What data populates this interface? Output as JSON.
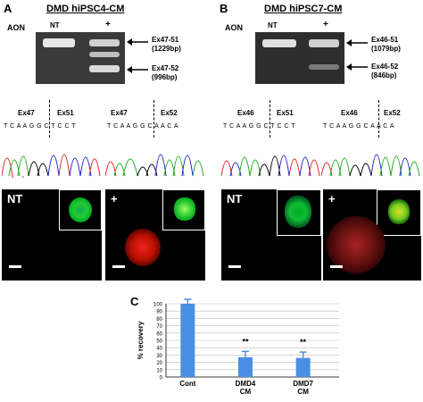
{
  "panelA": {
    "label": "A",
    "title": "DMD hiPSC4-CM",
    "aon": "AON",
    "lane_nt": "NT",
    "lane_plus": "+",
    "band1": {
      "name": "Ex47-51",
      "size": "(1229bp)"
    },
    "band2": {
      "name": "Ex47-52",
      "size": "(996bp)"
    },
    "trace_nt": {
      "left": "Ex47",
      "right": "Ex51",
      "seq": "T C A A G  G  C  T  C  C  T"
    },
    "trace_plus": {
      "left": "Ex47",
      "right": "Ex52",
      "seq": "T C A A G  G  C  A  A  C  A"
    },
    "img_nt": "NT",
    "img_plus": "+"
  },
  "panelB": {
    "label": "B",
    "title": "DMD hiPSC7-CM",
    "aon": "AON",
    "lane_nt": "NT",
    "lane_plus": "+",
    "band1": {
      "name": "Ex46-51",
      "size": "(1079bp)"
    },
    "band2": {
      "name": "Ex46-52",
      "size": "(846bp)"
    },
    "trace_nt": {
      "left": "Ex46",
      "right": "Ex51",
      "seq": "T C A A G  G  C  T  C  C  T"
    },
    "trace_plus": {
      "left": "Ex46",
      "right": "Ex52",
      "seq": "T C A A G  G  C  A  A  C  A"
    },
    "img_nt": "NT",
    "img_plus": "+"
  },
  "panelC": {
    "label": "C"
  },
  "colors": {
    "bar": "#4a90e2",
    "gel_bg": "#3a3a3a"
  },
  "chart_data": {
    "type": "bar",
    "categories": [
      "Cont",
      "DMD4\nCM",
      "DMD7\nCM"
    ],
    "category_lines": [
      [
        "Cont"
      ],
      [
        "DMD4",
        "CM"
      ],
      [
        "DMD7",
        "CM"
      ]
    ],
    "values": [
      100,
      27,
      26
    ],
    "errors": [
      6,
      8,
      8
    ],
    "annotations": [
      "",
      "**",
      "**"
    ],
    "ylabel": "% recovery",
    "ylim": [
      0,
      100
    ],
    "yticks": [
      0,
      10,
      20,
      30,
      40,
      50,
      60,
      70,
      80,
      90,
      100
    ],
    "grid": true
  }
}
